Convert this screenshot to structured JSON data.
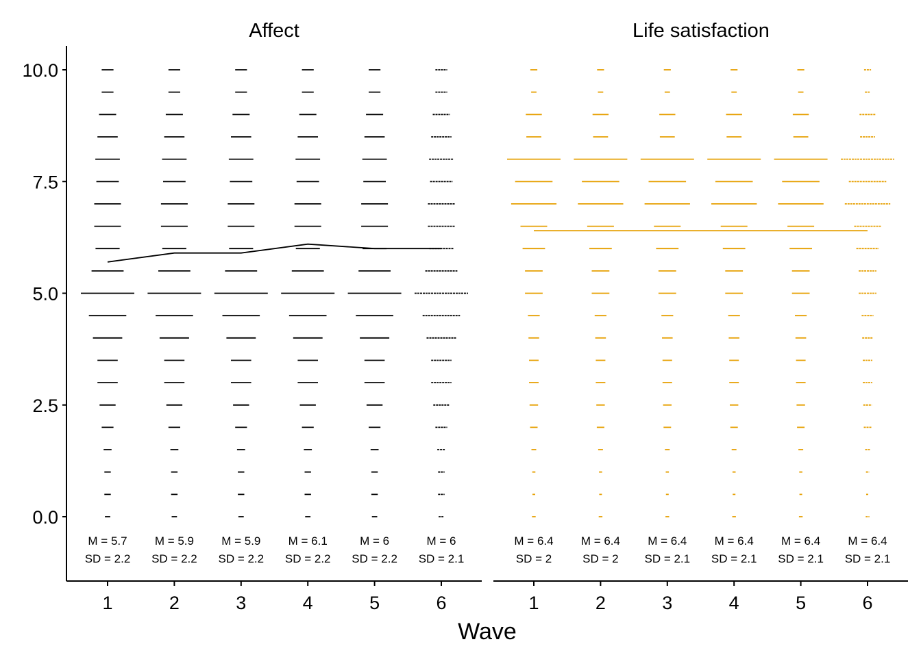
{
  "chart_data": {
    "type": "dot-strip",
    "xlabel": "Wave",
    "ylabel": "",
    "ylim": [
      -1.4,
      10.5
    ],
    "y_ticks": [
      "0.0",
      "2.5",
      "5.0",
      "7.5",
      "10.0"
    ],
    "y_tick_values": [
      0,
      2.5,
      5,
      7.5,
      10
    ],
    "x_ticks": [
      "1",
      "2",
      "3",
      "4",
      "5",
      "6"
    ],
    "y_levels": [
      0,
      0.5,
      1,
      1.5,
      2,
      2.5,
      3,
      3.5,
      4,
      4.5,
      5,
      5.5,
      6,
      6.5,
      7,
      7.5,
      8,
      8.5,
      9,
      9.5,
      10
    ],
    "panels": [
      {
        "title": "Affect",
        "color": "#000000",
        "means": [
          5.7,
          5.9,
          5.9,
          6.1,
          6.0,
          6.0
        ],
        "stats": [
          {
            "m": "M = 5.7",
            "sd": "SD = 2.2"
          },
          {
            "m": "M = 5.9",
            "sd": "SD = 2.2"
          },
          {
            "m": "M = 5.9",
            "sd": "SD = 2.2"
          },
          {
            "m": "M = 6.1",
            "sd": "SD = 2.2"
          },
          {
            "m": "M = 6",
            "sd": "SD = 2.2"
          },
          {
            "m": "M = 6",
            "sd": "SD = 2.1"
          }
        ],
        "frequencies": [
          0.1,
          0.12,
          0.12,
          0.15,
          0.22,
          0.3,
          0.38,
          0.38,
          0.55,
          0.7,
          1.0,
          0.6,
          0.45,
          0.5,
          0.5,
          0.42,
          0.46,
          0.38,
          0.32,
          0.22,
          0.22
        ]
      },
      {
        "title": "Life satisfaction",
        "color": "#E69F00",
        "means": [
          6.4,
          6.4,
          6.4,
          6.4,
          6.4,
          6.4
        ],
        "stats": [
          {
            "m": "M = 6.4",
            "sd": "SD = 2"
          },
          {
            "m": "M = 6.4",
            "sd": "SD = 2"
          },
          {
            "m": "M = 6.4",
            "sd": "SD = 2.1"
          },
          {
            "m": "M = 6.4",
            "sd": "SD = 2.1"
          },
          {
            "m": "M = 6.4",
            "sd": "SD = 2.1"
          },
          {
            "m": "M = 6.4",
            "sd": "SD = 2.1"
          }
        ],
        "frequencies": [
          0.07,
          0.05,
          0.06,
          0.09,
          0.14,
          0.16,
          0.18,
          0.18,
          0.2,
          0.22,
          0.33,
          0.33,
          0.42,
          0.5,
          0.85,
          0.7,
          1.0,
          0.28,
          0.3,
          0.1,
          0.13
        ]
      }
    ]
  }
}
